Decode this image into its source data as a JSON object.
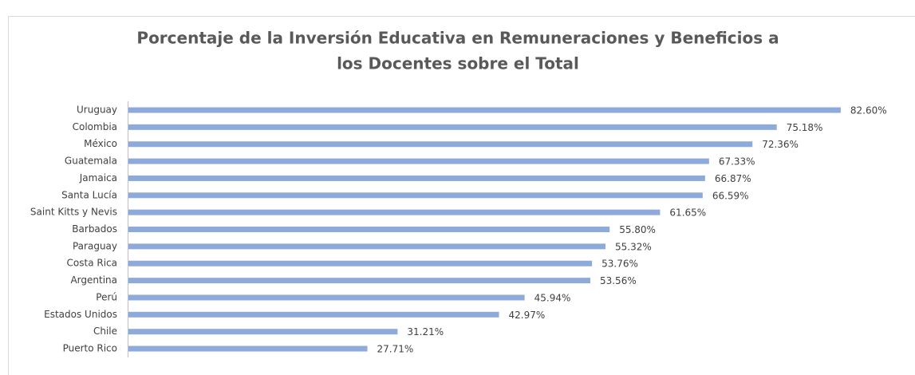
{
  "chart_data": {
    "type": "bar",
    "orientation": "horizontal",
    "title": [
      "Porcentaje de la Inversión Educativa en Remuneraciones y Beneficios a",
      "los Docentes sobre el Total"
    ],
    "categories": [
      "Uruguay",
      "Colombia",
      "México",
      "Guatemala",
      "Jamaica",
      "Santa Lucía",
      "Saint Kitts y Nevis",
      "Barbados",
      "Paraguay",
      "Costa Rica",
      "Argentina",
      "Perú",
      "Estados Unidos",
      "Chile",
      "Puerto Rico"
    ],
    "values": [
      82.6,
      75.18,
      72.36,
      67.33,
      66.87,
      66.59,
      61.65,
      55.8,
      55.32,
      53.76,
      53.56,
      45.94,
      42.97,
      31.21,
      27.71
    ],
    "value_labels": [
      "82.60%",
      "75.18%",
      "72.36%",
      "67.33%",
      "66.87%",
      "66.59%",
      "61.65%",
      "55.80%",
      "55.32%",
      "53.76%",
      "53.56%",
      "45.94%",
      "42.97%",
      "31.21%",
      "27.71%"
    ],
    "color": "#8eaadb"
  }
}
